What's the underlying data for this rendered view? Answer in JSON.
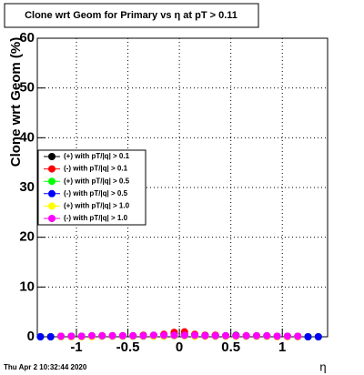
{
  "chart_data": {
    "type": "scatter",
    "title": "Clone wrt Geom for Primary vs   η at pT > 0.11",
    "y_label": "Clone wrt Geom (%)",
    "x_label": "η",
    "timestamp": "Thu Apr  2 10:32:44 2020",
    "xlim": [
      -1.38,
      1.44
    ],
    "ylim": [
      0,
      60
    ],
    "xticks": [
      -1,
      -0.5,
      0,
      0.5,
      1
    ],
    "yticks": [
      0,
      10,
      20,
      30,
      40,
      50,
      60
    ],
    "grid": true,
    "x": [
      -1.35,
      -1.25,
      -1.15,
      -1.05,
      -0.95,
      -0.85,
      -0.75,
      -0.65,
      -0.55,
      -0.45,
      -0.35,
      -0.25,
      -0.15,
      -0.05,
      0.05,
      0.15,
      0.25,
      0.35,
      0.45,
      0.55,
      0.65,
      0.75,
      0.85,
      0.95,
      1.05,
      1.15,
      1.25,
      1.35
    ],
    "series": [
      {
        "name": "(+) with pT/|q| > 0.1",
        "color": "#000000",
        "values": [
          0,
          0,
          0.1,
          0.1,
          0.1,
          0.2,
          0.2,
          0.2,
          0.2,
          0.2,
          0.3,
          0.3,
          0.4,
          0.6,
          0.6,
          0.4,
          0.3,
          0.3,
          0.2,
          0.3,
          0.2,
          0.2,
          0.2,
          0.1,
          0.1,
          0.1,
          0,
          0
        ]
      },
      {
        "name": "(-) with pT/|q| > 0.1",
        "color": "#ff0000",
        "values": [
          0,
          0,
          0.1,
          0.1,
          0.1,
          0.1,
          0.2,
          0.2,
          0.2,
          0.2,
          0.3,
          0.3,
          0.5,
          0.9,
          1.0,
          0.5,
          0.3,
          0.3,
          0.2,
          0.2,
          0.2,
          0.2,
          0.1,
          0.1,
          0.1,
          0.1,
          0,
          0
        ]
      },
      {
        "name": "(+) with pT/|q| > 0.5",
        "color": "#00ff00",
        "values": [
          0,
          0,
          0,
          0,
          0,
          0.1,
          0.1,
          0.1,
          0.1,
          0.1,
          0.1,
          0.1,
          0.1,
          0.2,
          0.2,
          0.1,
          0.1,
          0.1,
          0.1,
          0.1,
          0.1,
          0.1,
          0.1,
          0,
          0,
          0,
          0,
          0
        ]
      },
      {
        "name": "(-) with pT/|q| > 0.5",
        "color": "#0000ff",
        "values": [
          0,
          0,
          0,
          0.1,
          0.1,
          0.1,
          0.1,
          0.1,
          0.1,
          0.1,
          0.1,
          0.2,
          0.2,
          0.3,
          0.3,
          0.2,
          0.2,
          0.1,
          0.2,
          0.2,
          0.1,
          0.1,
          0.1,
          0.1,
          0.1,
          0,
          0,
          0
        ]
      },
      {
        "name": "(+) with pT/|q| > 1.0",
        "color": "#ffff00",
        "values": [
          null,
          null,
          0,
          0,
          0,
          0,
          0.1,
          0.1,
          0.1,
          0.1,
          0.1,
          0.1,
          0.1,
          0.2,
          0.2,
          0.1,
          0.1,
          0.1,
          0.1,
          0.1,
          0.1,
          0.1,
          0.1,
          0,
          0,
          0,
          null,
          null
        ]
      },
      {
        "name": "(-) with pT/|q| > 1.0",
        "color": "#ff00ff",
        "values": [
          null,
          null,
          0.1,
          0.1,
          0.1,
          0.2,
          0.2,
          0.2,
          0.2,
          0.2,
          0.2,
          0.3,
          0.3,
          0.3,
          0.3,
          0.3,
          0.2,
          0.2,
          0.2,
          0.2,
          0.2,
          0.2,
          0.2,
          0.1,
          0.1,
          0.1,
          null,
          null
        ]
      }
    ]
  }
}
